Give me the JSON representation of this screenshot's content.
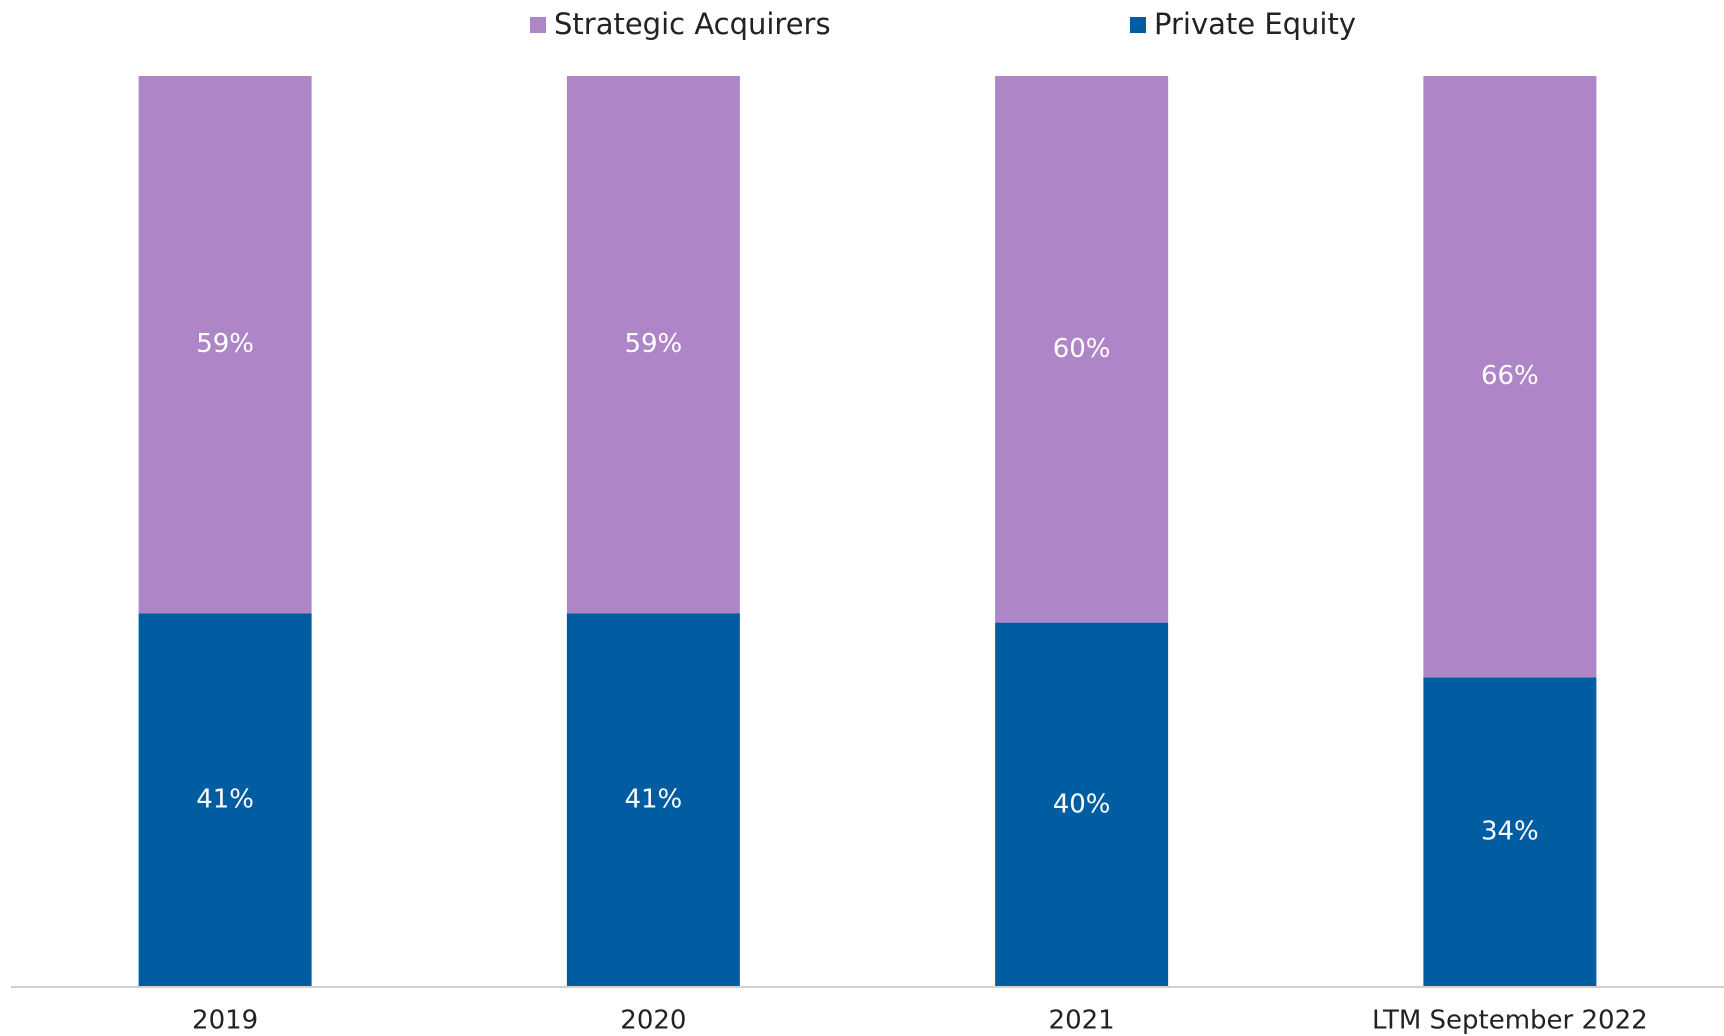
{
  "chart_data": {
    "type": "stacked_bar",
    "categories": [
      "2019",
      "2020",
      "2021",
      "LTM  September 2022"
    ],
    "series": [
      {
        "name": "Strategic Acquirers",
        "color": "#ae86c7",
        "values": [
          59,
          59,
          60,
          66
        ],
        "value_labels": [
          "59%",
          "59%",
          "60%",
          "66%"
        ]
      },
      {
        "name": "Private Equity",
        "color": "#005da2",
        "values": [
          41,
          41,
          40,
          34
        ],
        "value_labels": [
          "41%",
          "41%",
          "40%",
          "34%"
        ]
      }
    ],
    "ylim": [
      0,
      100
    ],
    "legend": "top"
  }
}
